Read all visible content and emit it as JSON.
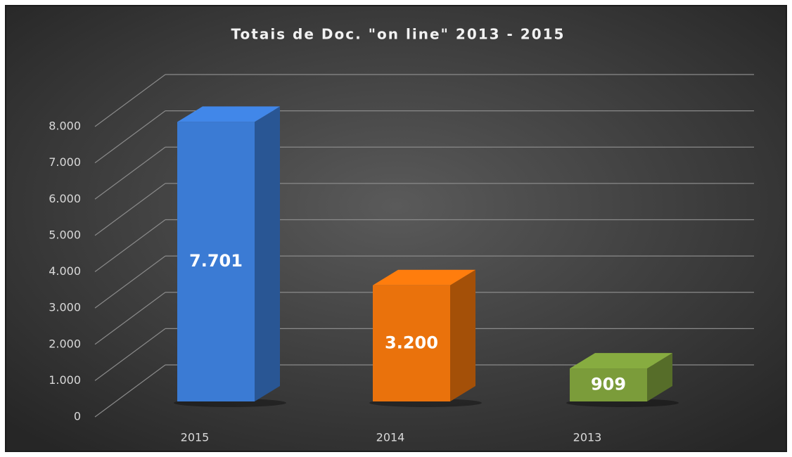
{
  "chart_data": {
    "type": "bar3d",
    "title": "Totais de Doc. \"on line\" 2013 - 2015",
    "categories": [
      "2015",
      "2014",
      "2013"
    ],
    "values": [
      7701,
      3200,
      909
    ],
    "value_labels": [
      "7.701",
      "3.200",
      "909"
    ],
    "colors": [
      "#3b7bd4",
      "#ea720c",
      "#7b9c3a"
    ],
    "ylim": [
      0,
      8000
    ],
    "yticks": [
      0,
      {
        "value": 1000,
        "label": "1.000"
      },
      {
        "value": 2000,
        "label": "2.000"
      },
      {
        "value": 3000,
        "label": "3.000"
      },
      {
        "value": 4000,
        "label": "4.000"
      },
      {
        "value": 5000,
        "label": "5.000"
      },
      {
        "value": 6000,
        "label": "6.000"
      },
      {
        "value": 7000,
        "label": "7.000"
      },
      {
        "value": 8000,
        "label": "8.000"
      }
    ],
    "grid": true
  }
}
